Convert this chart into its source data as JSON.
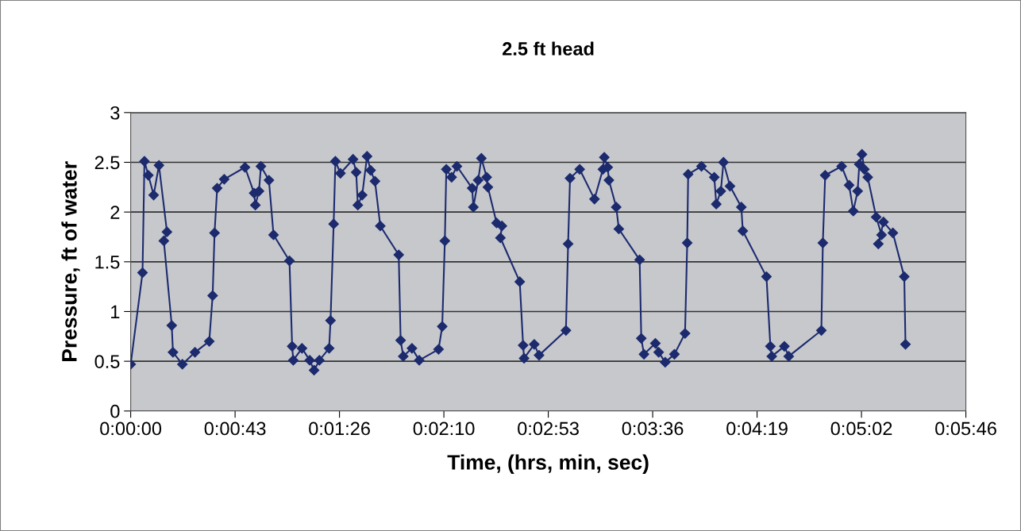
{
  "chart_data": {
    "type": "line",
    "title": "2.5 ft head",
    "xlabel": "Time, (hrs, min, sec)",
    "ylabel": "Pressure, ft of water",
    "xlim": [
      0,
      0.096
    ],
    "xticks": [
      {
        "value": 0,
        "label": "0:00:00"
      },
      {
        "value": 0.012,
        "label": "0:00:43"
      },
      {
        "value": 0.024,
        "label": "0:01:26"
      },
      {
        "value": 0.036,
        "label": "0:02:10"
      },
      {
        "value": 0.048,
        "label": "0:02:53"
      },
      {
        "value": 0.06,
        "label": "0:03:36"
      },
      {
        "value": 0.072,
        "label": "0:04:19"
      },
      {
        "value": 0.084,
        "label": "0:05:02"
      },
      {
        "value": 0.096,
        "label": "0:05:46"
      }
    ],
    "ylim": [
      0,
      3
    ],
    "yticks": [
      0,
      0.5,
      1,
      1.5,
      2,
      2.5,
      3
    ],
    "grid": "y",
    "marker": "diamond",
    "line_style": "solid",
    "series": [
      {
        "color": "#1c2a6e",
        "x": [
          0,
          0.00136,
          0.00158,
          0.00203,
          0.00264,
          0.00325,
          0.00417,
          0.00381,
          0.00472,
          0.00486,
          0.00594,
          0.00739,
          0.00903,
          0.00942,
          0.00964,
          0.00994,
          0.01075,
          0.01314,
          0.01419,
          0.01433,
          0.01475,
          0.01497,
          0.01589,
          0.01642,
          0.01825,
          0.01856,
          0.01869,
          0.01969,
          0.02058,
          0.02108,
          0.02169,
          0.02281,
          0.02297,
          0.02333,
          0.02353,
          0.02411,
          0.02556,
          0.02592,
          0.02611,
          0.02661,
          0.02717,
          0.02758,
          0.02808,
          0.02869,
          0.03081,
          0.03103,
          0.03133,
          0.03233,
          0.03317,
          0.03539,
          0.03581,
          0.03611,
          0.03628,
          0.03689,
          0.0375,
          0.03925,
          0.03939,
          0.03994,
          0.04031,
          0.04092,
          0.04106,
          0.04206,
          0.04267,
          0.0425,
          0.04472,
          0.04511,
          0.04522,
          0.04639,
          0.04694,
          0.05003,
          0.05028,
          0.0505,
          0.05161,
          0.05331,
          0.05428,
          0.05444,
          0.05483,
          0.05497,
          0.05581,
          0.05611,
          0.0585,
          0.05869,
          0.059,
          0.06031,
          0.06069,
          0.06144,
          0.0625,
          0.06372,
          0.06397,
          0.06408,
          0.06561,
          0.06708,
          0.06731,
          0.06783,
          0.06814,
          0.06889,
          0.07019,
          0.07036,
          0.07308,
          0.07353,
          0.07369,
          0.07514,
          0.07564,
          0.07939,
          0.07956,
          0.07983,
          0.08172,
          0.08258,
          0.08306,
          0.08356,
          0.08375,
          0.08406,
          0.08433,
          0.08472,
          0.08569,
          0.08631,
          0.08594,
          0.08653,
          0.08761,
          0.08892,
          0.08906
        ],
        "values": [
          0.47,
          1.39,
          2.51,
          2.37,
          2.17,
          2.47,
          1.8,
          1.71,
          0.86,
          0.59,
          0.47,
          0.59,
          0.7,
          1.16,
          1.79,
          2.24,
          2.33,
          2.45,
          2.19,
          2.07,
          2.21,
          2.46,
          2.32,
          1.77,
          1.51,
          0.65,
          0.51,
          0.63,
          0.51,
          0.41,
          0.51,
          0.63,
          0.91,
          1.88,
          2.51,
          2.39,
          2.53,
          2.4,
          2.07,
          2.17,
          2.56,
          2.42,
          2.31,
          1.86,
          1.57,
          0.71,
          0.55,
          0.63,
          0.51,
          0.62,
          0.85,
          1.71,
          2.43,
          2.35,
          2.46,
          2.24,
          2.05,
          2.32,
          2.54,
          2.35,
          2.25,
          1.89,
          1.86,
          1.74,
          1.3,
          0.66,
          0.53,
          0.67,
          0.56,
          0.81,
          1.68,
          2.34,
          2.43,
          2.13,
          2.43,
          2.55,
          2.45,
          2.32,
          2.05,
          1.83,
          1.52,
          0.73,
          0.57,
          0.68,
          0.59,
          0.49,
          0.57,
          0.78,
          1.69,
          2.38,
          2.46,
          2.35,
          2.08,
          2.21,
          2.5,
          2.26,
          2.05,
          1.81,
          1.35,
          0.65,
          0.55,
          0.65,
          0.55,
          0.81,
          1.69,
          2.37,
          2.46,
          2.27,
          2.01,
          2.21,
          2.48,
          2.58,
          2.43,
          2.35,
          1.95,
          1.77,
          1.68,
          1.9,
          1.79,
          1.35,
          0.67
        ]
      }
    ]
  }
}
